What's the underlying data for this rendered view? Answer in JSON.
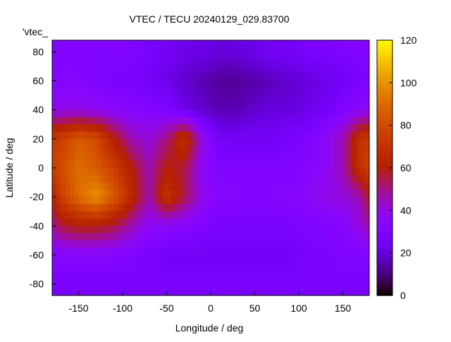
{
  "chart_data": {
    "type": "heatmap",
    "title": "VTEC / TECU 20240129_029.83700",
    "xlabel": "Longitude / deg",
    "ylabel": "Latitude / deg",
    "key_label": "'vtec_",
    "xlim": [
      -180,
      180
    ],
    "ylim": [
      -88,
      88
    ],
    "xticks": [
      -150,
      -100,
      -50,
      0,
      50,
      100,
      150
    ],
    "yticks": [
      -80,
      -60,
      -40,
      -20,
      0,
      20,
      40,
      60,
      80
    ],
    "colorbar": {
      "range": [
        0,
        120
      ],
      "ticks": [
        0,
        20,
        40,
        60,
        80,
        100,
        120
      ],
      "palette": "black-purple-red-orange-yellow"
    },
    "coastline_color": "#00bfff",
    "grid_lon_centers": [
      -170,
      -150,
      -130,
      -110,
      -90,
      -70,
      -50,
      -30,
      -10,
      10,
      30,
      50,
      70,
      90,
      110,
      130,
      150,
      170
    ],
    "grid_lat_centers": [
      80,
      60,
      40,
      20,
      0,
      -20,
      -40,
      -60,
      -80
    ],
    "values": [
      [
        30,
        30,
        30,
        30,
        30,
        28,
        25,
        22,
        22,
        20,
        20,
        22,
        25,
        25,
        28,
        28,
        30,
        30
      ],
      [
        32,
        32,
        30,
        28,
        28,
        25,
        22,
        18,
        15,
        12,
        12,
        14,
        16,
        18,
        20,
        22,
        25,
        28
      ],
      [
        38,
        38,
        36,
        34,
        32,
        32,
        30,
        22,
        18,
        15,
        15,
        18,
        20,
        20,
        22,
        25,
        30,
        35
      ],
      [
        75,
        85,
        80,
        60,
        45,
        40,
        50,
        70,
        40,
        25,
        25,
        25,
        25,
        28,
        30,
        35,
        45,
        70
      ],
      [
        80,
        90,
        85,
        75,
        60,
        45,
        60,
        55,
        35,
        30,
        30,
        30,
        30,
        30,
        32,
        35,
        45,
        70
      ],
      [
        75,
        90,
        100,
        85,
        65,
        45,
        70,
        55,
        38,
        32,
        32,
        30,
        32,
        32,
        35,
        38,
        40,
        45
      ],
      [
        55,
        60,
        60,
        55,
        45,
        35,
        35,
        32,
        30,
        28,
        28,
        28,
        28,
        28,
        30,
        30,
        32,
        40
      ],
      [
        32,
        32,
        32,
        32,
        30,
        28,
        25,
        25,
        25,
        25,
        25,
        25,
        25,
        25,
        28,
        28,
        30,
        30
      ],
      [
        28,
        28,
        28,
        28,
        28,
        28,
        28,
        28,
        28,
        28,
        28,
        28,
        28,
        28,
        28,
        28,
        28,
        28
      ]
    ]
  }
}
